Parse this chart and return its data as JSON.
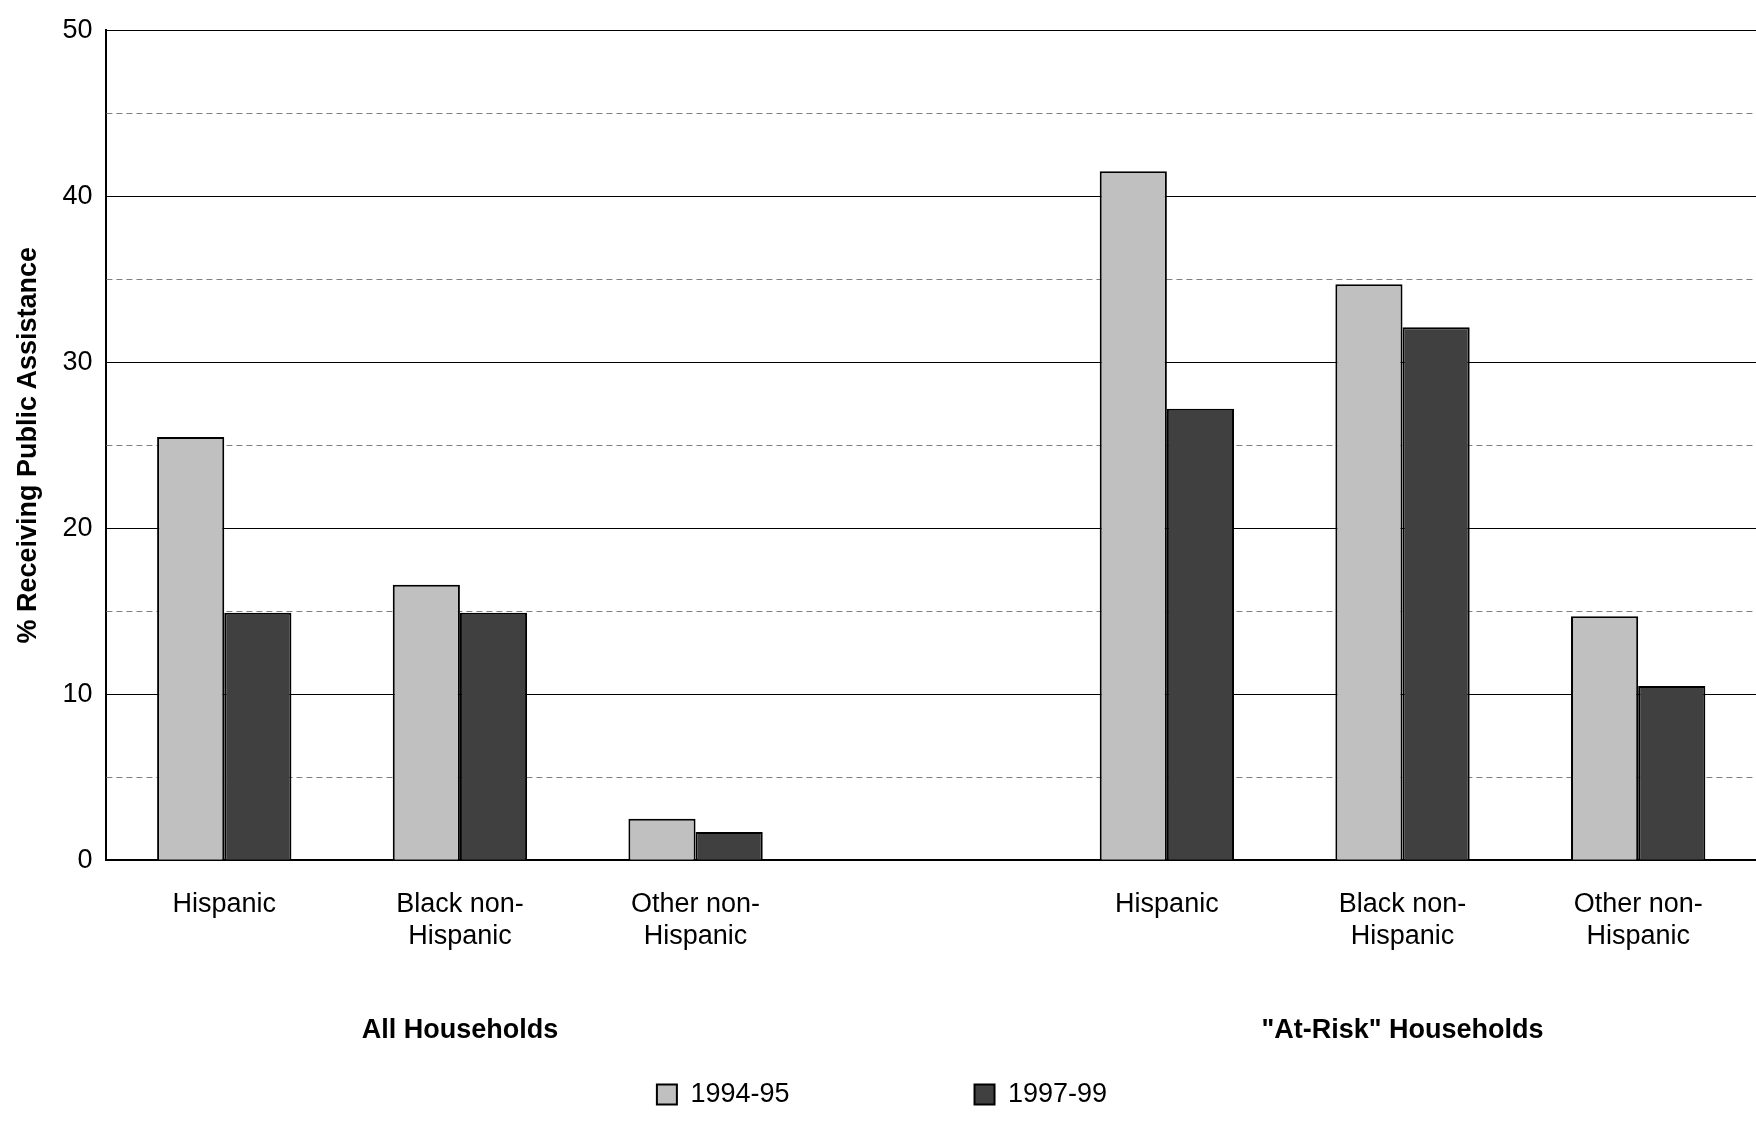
{
  "chart_data": {
    "type": "bar",
    "ylabel": "% Receiving Public Assistance",
    "categories": [
      "Hispanic",
      "Black non-Hispanic",
      "Other non-Hispanic",
      null,
      "Hispanic",
      "Black non-Hispanic",
      "Other non-Hispanic"
    ],
    "series": [
      {
        "name": "1994-95",
        "color": "#c0c0c0",
        "values": [
          25.5,
          16.6,
          2.5,
          null,
          41.5,
          34.7,
          14.7
        ]
      },
      {
        "name": "1997-99",
        "color": "#404040",
        "values": [
          14.9,
          14.9,
          1.7,
          null,
          27.2,
          32.1,
          10.5
        ]
      }
    ],
    "ylim": [
      0,
      50
    ],
    "yticks": [
      0,
      {
        "value": 5,
        "label": null
      },
      10,
      {
        "value": 15,
        "label": null
      },
      20,
      {
        "value": 25,
        "label": null
      },
      30,
      {
        "value": 35,
        "label": null
      },
      40,
      {
        "value": 45,
        "label": null
      },
      50
    ],
    "annotations": [
      "All Households",
      "\"At-Risk\" Households"
    ],
    "grid": "y",
    "legend": "bottom"
  }
}
